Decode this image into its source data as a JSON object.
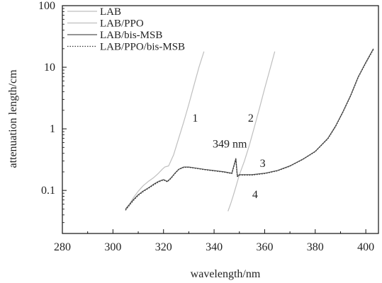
{
  "chart_data": {
    "type": "line",
    "title": "",
    "xlabel": "wavelength/nm",
    "ylabel": "attenuation length/cm",
    "xlim": [
      280,
      405
    ],
    "ylim": [
      0.02,
      100
    ],
    "y_scale": "log",
    "x_ticks": [
      280,
      300,
      320,
      340,
      360,
      380,
      400
    ],
    "x_tick_labels": [
      "280",
      "300",
      "320",
      "340",
      "360",
      "380",
      "400"
    ],
    "y_ticks": [
      0.1,
      1,
      10,
      100
    ],
    "y_tick_labels": [
      "0.1",
      "1",
      "10",
      "100"
    ],
    "grid": false,
    "legend_position": "top-left",
    "legend": [
      "LAB",
      "LAB/PPO",
      "LAB/bis-MSB",
      "LAB/PPO/bis-MSB"
    ],
    "series": [
      {
        "name": "LAB",
        "color": "#bfbfbf",
        "dash": "solid",
        "x": [
          304.9,
          306,
          308,
          310,
          312,
          314,
          316,
          318,
          319.5,
          320.5,
          322,
          324,
          326,
          328,
          330,
          332,
          334,
          336
        ],
        "y": [
          0.047,
          0.055,
          0.075,
          0.097,
          0.12,
          0.14,
          0.16,
          0.19,
          0.22,
          0.24,
          0.25,
          0.38,
          0.7,
          1.3,
          2.5,
          5.0,
          10,
          18
        ]
      },
      {
        "name": "LAB/PPO",
        "color": "#bfbfbf",
        "dash": "solid",
        "x": [
          345.5,
          346.5,
          347.5,
          348.5,
          349,
          350,
          352,
          354,
          356,
          358,
          360,
          362,
          364
        ],
        "y": [
          0.046,
          0.06,
          0.08,
          0.11,
          0.13,
          0.18,
          0.3,
          0.55,
          1.1,
          2.2,
          4.5,
          9,
          18
        ]
      },
      {
        "name": "LAB/bis-MSB",
        "color": "#555555",
        "dash": "solid",
        "x": [
          305,
          308,
          310,
          312,
          314,
          316,
          318,
          320,
          321.5,
          323,
          324.5,
          326,
          328,
          330,
          333,
          336,
          340,
          344,
          347,
          348.6,
          349.2,
          350,
          352,
          355,
          360,
          365,
          370,
          375,
          380,
          385,
          388,
          391,
          394,
          397,
          400,
          403
        ],
        "y": [
          0.05,
          0.07,
          0.085,
          0.098,
          0.11,
          0.125,
          0.14,
          0.15,
          0.14,
          0.16,
          0.19,
          0.22,
          0.24,
          0.24,
          0.23,
          0.22,
          0.21,
          0.2,
          0.19,
          0.33,
          0.17,
          0.18,
          0.18,
          0.18,
          0.19,
          0.21,
          0.25,
          0.32,
          0.43,
          0.7,
          1.1,
          1.9,
          3.5,
          7,
          12,
          20
        ]
      },
      {
        "name": "LAB/PPO/bis-MSB",
        "color": "#333333",
        "dash": "dotted",
        "x": [
          305,
          308,
          310,
          312,
          314,
          316,
          318,
          320,
          321.5,
          323,
          324.5,
          326,
          328,
          330,
          333,
          336,
          340,
          344,
          347,
          348.6,
          349.2,
          350,
          352,
          355,
          360,
          365,
          370,
          375,
          380,
          385,
          388,
          391,
          394,
          397,
          400,
          403
        ],
        "y": [
          0.048,
          0.068,
          0.083,
          0.096,
          0.108,
          0.122,
          0.137,
          0.148,
          0.138,
          0.158,
          0.188,
          0.218,
          0.238,
          0.238,
          0.228,
          0.218,
          0.208,
          0.198,
          0.188,
          0.32,
          0.168,
          0.178,
          0.178,
          0.178,
          0.188,
          0.208,
          0.248,
          0.318,
          0.428,
          0.69,
          1.08,
          1.88,
          3.45,
          6.9,
          11.8,
          19.5
        ]
      }
    ],
    "annotations": [
      {
        "text": "1",
        "x": 332.5,
        "y": 1.3
      },
      {
        "text": "2",
        "x": 354.5,
        "y": 1.3
      },
      {
        "text": "3",
        "x": 359.2,
        "y": 0.24
      },
      {
        "text": "4",
        "x": 356.2,
        "y": 0.075
      },
      {
        "text": "349 nm",
        "x": 346.2,
        "y": 0.5
      }
    ]
  }
}
